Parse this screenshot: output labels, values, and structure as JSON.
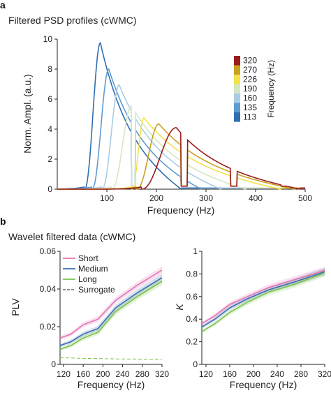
{
  "figure": {
    "panel_a_letter": "a",
    "panel_b_letter": "b"
  },
  "chart_data": [
    {
      "type": "line",
      "title": "Filtered PSD profiles (cWMC)",
      "xlabel": "Frequency (Hz)",
      "ylabel": "Norm. Ampl. (a.u.)",
      "xlim": [
        0,
        500
      ],
      "ylim": [
        0,
        10
      ],
      "xticks": [
        100,
        200,
        300,
        400,
        500
      ],
      "yticks": [
        0,
        2,
        4,
        6,
        8,
        10
      ],
      "legend_title": "Frequency (Hz)",
      "legend_placement": "top-right",
      "grid": false,
      "series": [
        {
          "name": "113",
          "color": "#2f6eb0",
          "peak_x": 87,
          "peak_y": 9.75,
          "low": 55,
          "high": 250
        },
        {
          "name": "135",
          "color": "#5f9bcf",
          "peak_x": 104,
          "peak_y": 8.0,
          "low": 70,
          "high": 290
        },
        {
          "name": "160",
          "color": "#a9cde6",
          "peak_x": 125,
          "peak_y": 6.95,
          "low": 90,
          "high": 330
        },
        {
          "name": "190",
          "color": "#d4e7c2",
          "peak_x": 150,
          "peak_y": 5.55,
          "low": 110,
          "high": 380
        },
        {
          "name": "226",
          "color": "#f4e24a",
          "peak_x": 175,
          "peak_y": 4.75,
          "low": 150,
          "high": 450
        },
        {
          "name": "270",
          "color": "#c9a11f",
          "peak_x": 205,
          "peak_y": 4.35,
          "low": 160,
          "high": 480
        },
        {
          "name": "320",
          "color": "#9b1c1c",
          "peak_x": 240,
          "peak_y": 4.1,
          "low": 170,
          "high": 490
        }
      ]
    },
    {
      "type": "line",
      "title": "Wavelet filtered data (cWMC)",
      "xlabel": "Frequency (Hz)",
      "ylabel": "PLV",
      "xlim": [
        113,
        320
      ],
      "ylim": [
        0,
        0.06
      ],
      "xticks": [
        120,
        160,
        200,
        240,
        280,
        320
      ],
      "yticks": [
        0,
        0.02,
        0.04,
        0.06
      ],
      "ytick_labels": [
        "0",
        "0.02",
        "0.04",
        "0.06"
      ],
      "legend_placement": "top-left",
      "x": [
        113,
        135,
        160,
        190,
        226,
        270,
        320
      ],
      "series": [
        {
          "name": "Short",
          "color": "#e573b5",
          "values": [
            0.014,
            0.016,
            0.021,
            0.024,
            0.034,
            0.042,
            0.05
          ]
        },
        {
          "name": "Medium",
          "color": "#3b6fb0",
          "values": [
            0.01,
            0.012,
            0.016,
            0.019,
            0.03,
            0.038,
            0.046
          ]
        },
        {
          "name": "Long",
          "color": "#79c24a",
          "values": [
            0.008,
            0.01,
            0.014,
            0.017,
            0.028,
            0.036,
            0.044
          ]
        },
        {
          "name": "Surrogate",
          "color": "#79c24a",
          "dashed": true,
          "values": [
            0.0035,
            0.0034,
            0.0032,
            0.0031,
            0.0029,
            0.0028,
            0.0026
          ]
        }
      ]
    },
    {
      "type": "line",
      "title": "",
      "xlabel": "Frequency (Hz)",
      "ylabel": "K",
      "xlim": [
        113,
        320
      ],
      "ylim": [
        0,
        1
      ],
      "xticks": [
        120,
        160,
        200,
        240,
        280,
        320
      ],
      "yticks": [
        0,
        0.2,
        0.4,
        0.6,
        0.8,
        1
      ],
      "ytick_labels": [
        "0",
        "0.2",
        "0.4",
        "0.6",
        "0.8",
        "1"
      ],
      "x": [
        113,
        135,
        160,
        190,
        226,
        270,
        320
      ],
      "series": [
        {
          "name": "Short",
          "color": "#e573b5",
          "values": [
            0.36,
            0.43,
            0.53,
            0.6,
            0.68,
            0.75,
            0.83
          ]
        },
        {
          "name": "Medium",
          "color": "#3b6fb0",
          "values": [
            0.33,
            0.4,
            0.5,
            0.58,
            0.66,
            0.73,
            0.82
          ]
        },
        {
          "name": "Long",
          "color": "#79c24a",
          "values": [
            0.29,
            0.36,
            0.46,
            0.55,
            0.64,
            0.71,
            0.81
          ]
        }
      ]
    }
  ]
}
